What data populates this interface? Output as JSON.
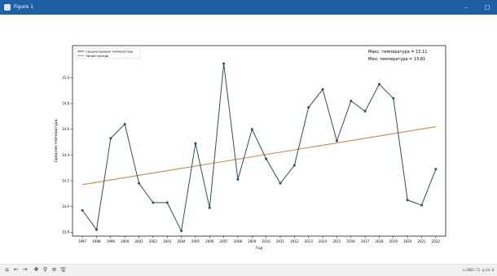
{
  "window": {
    "title": "Figure 1",
    "minimize_glyph": "–",
    "maximize_glyph": "□"
  },
  "toolbar": {
    "icons": [
      "home-icon",
      "back-icon",
      "forward-icon",
      "pan-icon",
      "zoom-icon",
      "configure-icon",
      "save-icon"
    ],
    "glyphs": [
      "⌂",
      "←",
      "→",
      "✥",
      "⚲",
      "≡",
      "🖫"
    ],
    "coordinates": "x=2003.72 y=14.0"
  },
  "colors": {
    "titlebar": "#1f5fa6",
    "series": "#2c4f5e",
    "trend": "#c8925a",
    "axes": "#000000"
  },
  "chart_data": {
    "type": "line",
    "title": "",
    "xlabel": "Год",
    "ylabel": "Средняя температура",
    "xlim": [
      1996.3,
      2022.7
    ],
    "ylim": [
      13.77,
      15.25
    ],
    "grid": false,
    "legend_position": "top-left",
    "x_ticks": [
      "1997",
      "1998",
      "1999",
      "2000",
      "2001",
      "2002",
      "2003",
      "2004",
      "2005",
      "2006",
      "2007",
      "2008",
      "2009",
      "2010",
      "2011",
      "2012",
      "2013",
      "2014",
      "2015",
      "2016",
      "2017",
      "2018",
      "2019",
      "2020",
      "2021",
      "2022"
    ],
    "y_ticks": [
      "13.8",
      "14.0",
      "14.2",
      "14.4",
      "14.6",
      "14.8",
      "15.0"
    ],
    "annotations": [
      "Макс. температура = 15.11",
      "Мин. температура = 13.81"
    ],
    "series": [
      {
        "name": "Среднегодовая температура",
        "x": [
          1997,
          1998,
          1999,
          2000,
          2001,
          2002,
          2003,
          2004,
          2005,
          2006,
          2007,
          2008,
          2009,
          2010,
          2011,
          2012,
          2013,
          2014,
          2015,
          2016,
          2017,
          2018,
          2019,
          2020,
          2021,
          2022
        ],
        "y": [
          13.97,
          13.82,
          14.53,
          14.64,
          14.18,
          14.03,
          14.03,
          13.81,
          14.49,
          13.99,
          15.11,
          14.21,
          14.6,
          14.37,
          14.18,
          14.32,
          14.77,
          14.91,
          14.51,
          14.82,
          14.74,
          14.95,
          14.84,
          14.05,
          14.01,
          14.29
        ],
        "style": "line-with-markers"
      },
      {
        "name": "Линия тренда",
        "x": [
          1997,
          2022
        ],
        "y": [
          14.17,
          14.62
        ],
        "style": "line"
      }
    ]
  }
}
